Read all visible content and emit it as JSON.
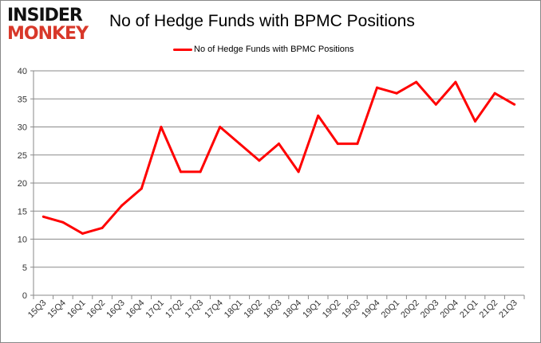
{
  "logo": {
    "line1": "INSIDER",
    "line2": "MONKEY"
  },
  "chart_data": {
    "type": "line",
    "title": "No of Hedge Funds with BPMC Positions",
    "xlabel": "",
    "ylabel": "",
    "categories": [
      "15Q3",
      "15Q4",
      "16Q1",
      "16Q2",
      "16Q3",
      "16Q4",
      "17Q1",
      "17Q2",
      "17Q3",
      "17Q4",
      "18Q1",
      "18Q2",
      "18Q3",
      "18Q4",
      "19Q1",
      "19Q2",
      "19Q3",
      "19Q4",
      "20Q1",
      "20Q2",
      "20Q3",
      "20Q4",
      "21Q1",
      "21Q2",
      "21Q3"
    ],
    "series": [
      {
        "name": "No of Hedge Funds with BPMC Positions",
        "color": "#ff0000",
        "values": [
          14,
          13,
          11,
          12,
          16,
          19,
          30,
          22,
          22,
          30,
          27,
          24,
          27,
          22,
          32,
          27,
          27,
          37,
          36,
          38,
          34,
          38,
          31,
          36,
          34
        ]
      }
    ],
    "ylim": [
      0,
      40
    ],
    "yticks": [
      0,
      5,
      10,
      15,
      20,
      25,
      30,
      35,
      40
    ],
    "grid": true,
    "legend": "top-center"
  }
}
